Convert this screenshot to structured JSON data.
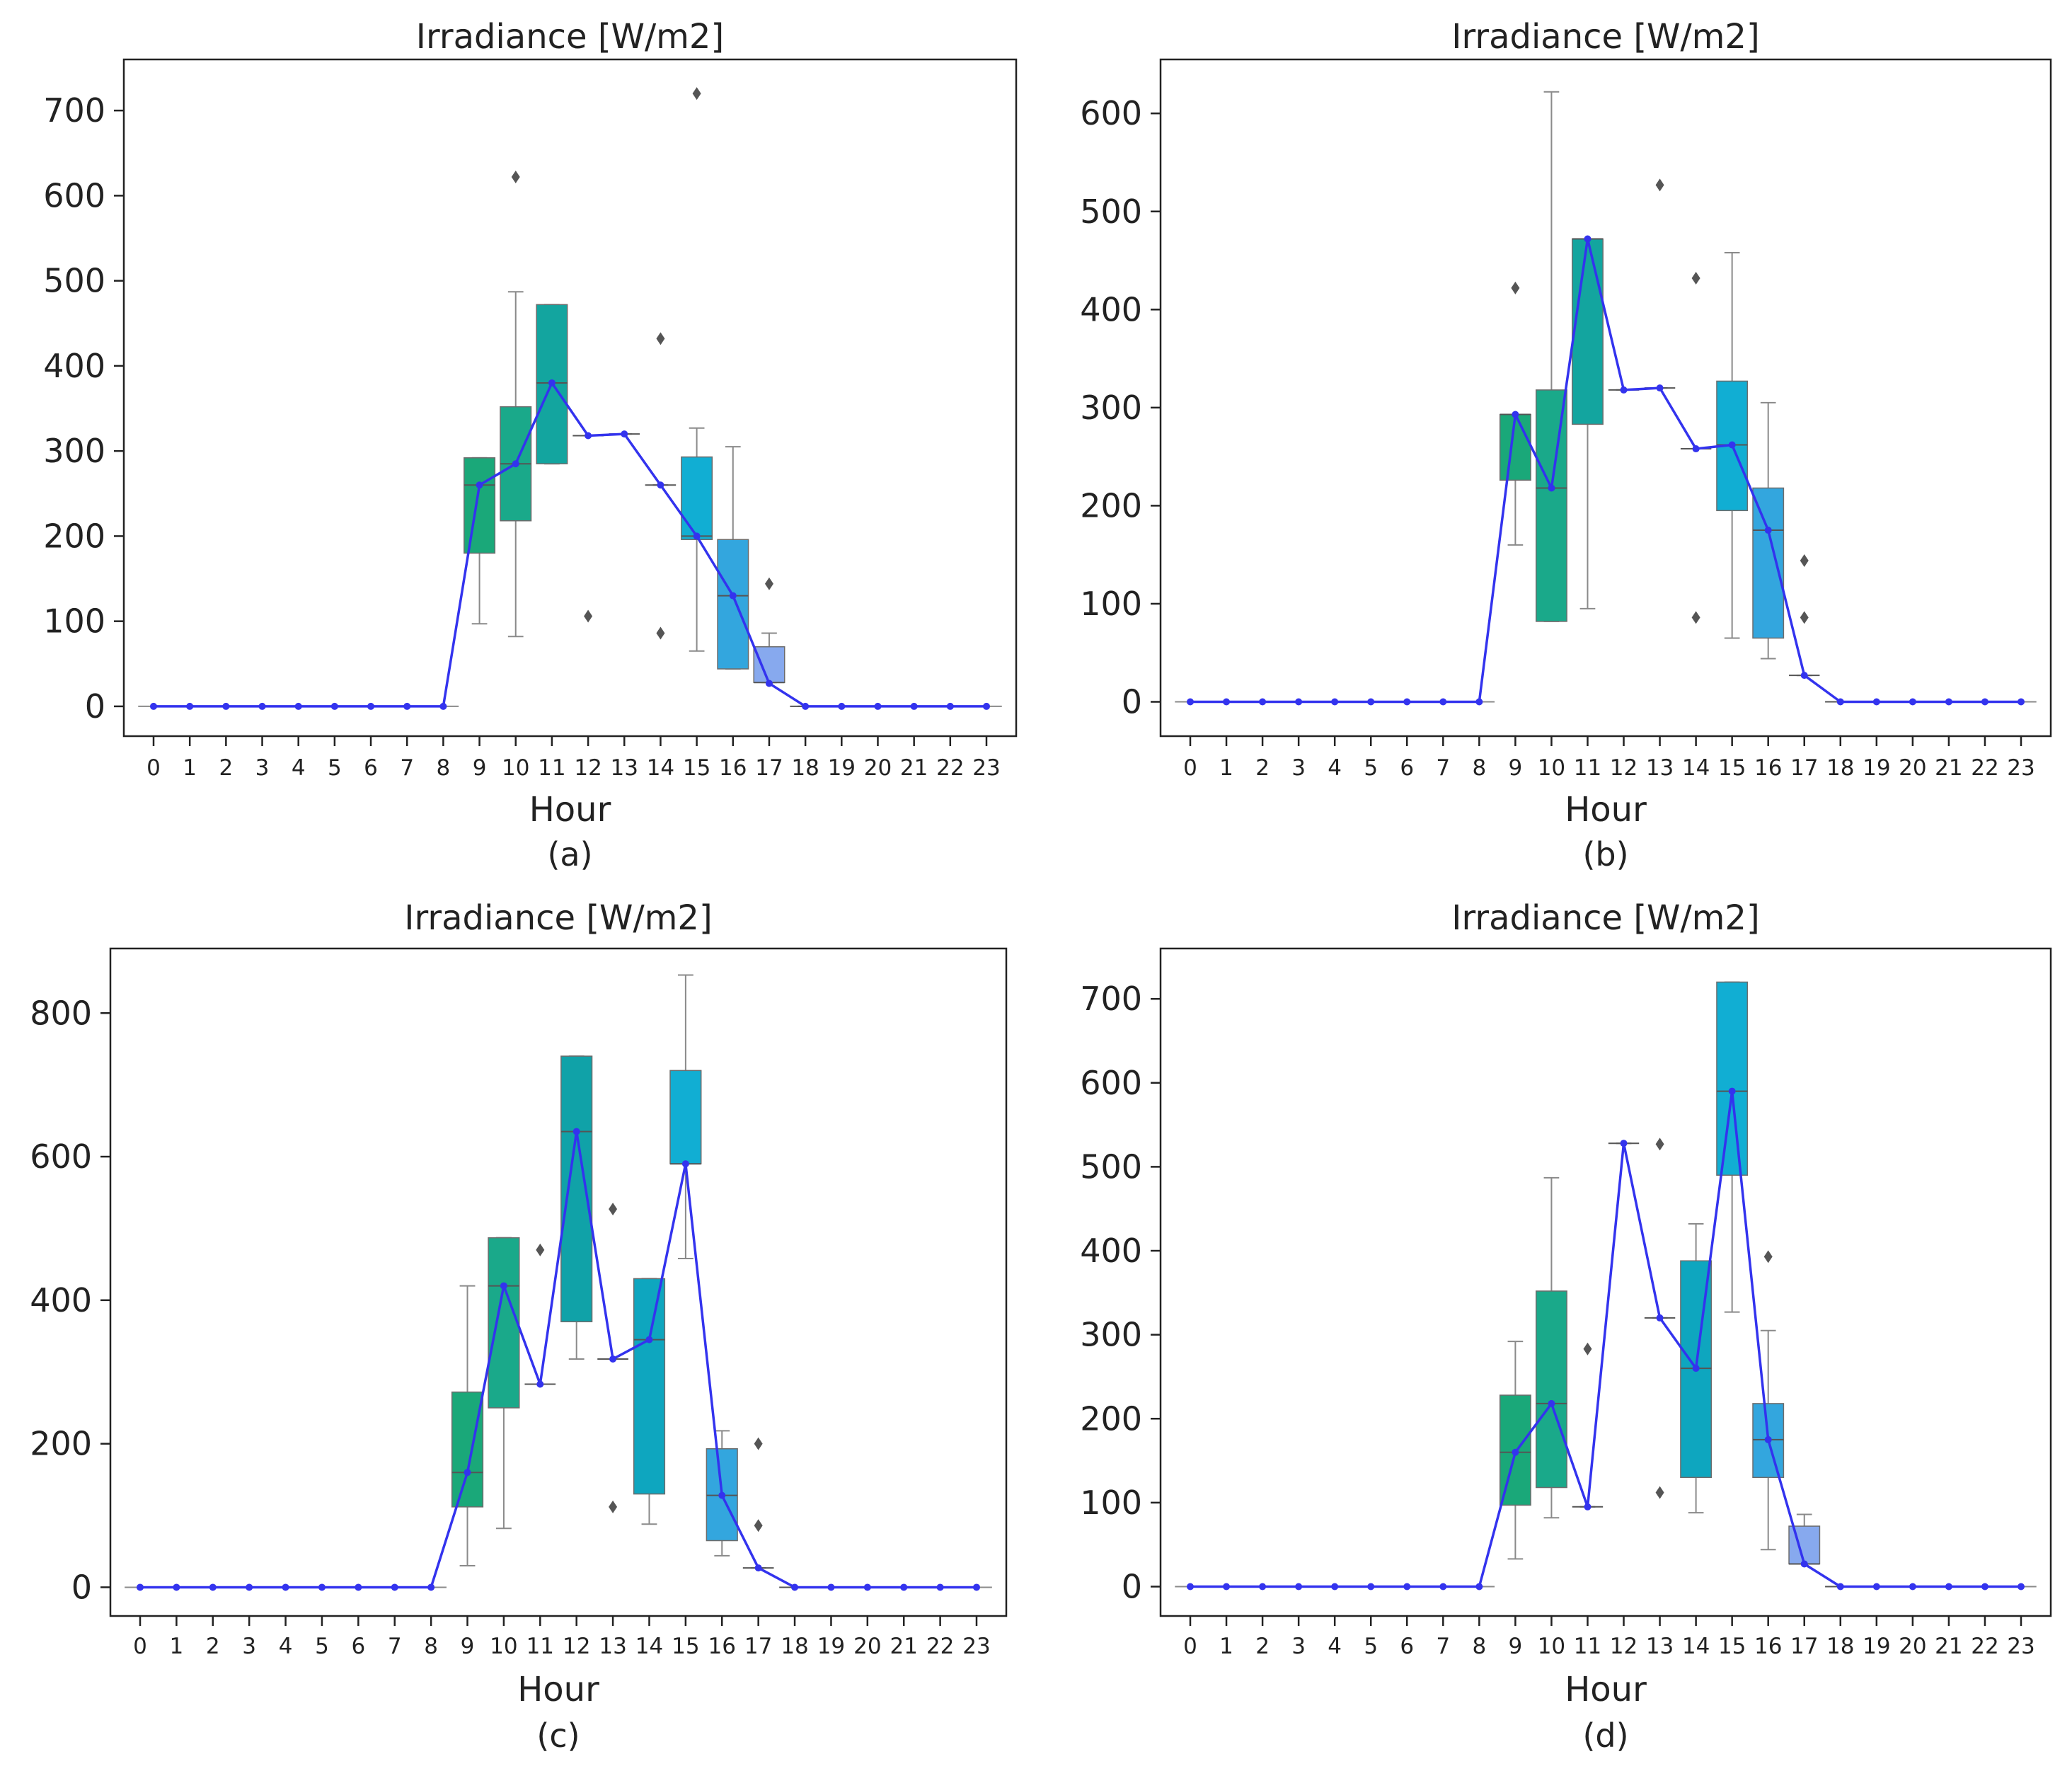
{
  "figure": {
    "panels": [
      {
        "caption": "(a)",
        "chart_data": {
          "type": "box",
          "title": "Irradiance [W/m2]",
          "xlabel": "Hour",
          "ylabel": "",
          "ylim": [
            -35,
            760
          ],
          "yticks": [
            0,
            100,
            200,
            300,
            400,
            500,
            600,
            700
          ],
          "categories": [
            "0",
            "1",
            "2",
            "3",
            "4",
            "5",
            "6",
            "7",
            "8",
            "9",
            "10",
            "11",
            "12",
            "13",
            "14",
            "15",
            "16",
            "17",
            "18",
            "19",
            "20",
            "21",
            "22",
            "23"
          ],
          "mean_line": [
            0,
            0,
            0,
            0,
            0,
            0,
            0,
            0,
            0,
            260,
            285,
            380,
            318,
            320,
            260,
            200,
            130,
            27,
            0,
            0,
            0,
            0,
            0,
            0
          ],
          "boxes": [
            {
              "hour": 9,
              "q1": 180,
              "median": 260,
              "q3": 292,
              "whisker_low": 97,
              "whisker_high": 292,
              "outliers": [],
              "color": "#1aa879"
            },
            {
              "hour": 10,
              "q1": 218,
              "median": 285,
              "q3": 352,
              "whisker_low": 82,
              "whisker_high": 487,
              "outliers": [
                622
              ],
              "color": "#1aa98a"
            },
            {
              "hour": 11,
              "q1": 285,
              "median": 380,
              "q3": 472,
              "whisker_low": 285,
              "whisker_high": 472,
              "outliers": [],
              "color": "#13a59f"
            },
            {
              "hour": 12,
              "q1": 318,
              "median": 318,
              "q3": 318,
              "whisker_low": 318,
              "whisker_high": 318,
              "outliers": [
                106
              ],
              "color": "#10a2a8"
            },
            {
              "hour": 13,
              "q1": 320,
              "median": 320,
              "q3": 320,
              "whisker_low": 320,
              "whisker_high": 320,
              "outliers": [],
              "color": "#0fa3b2"
            },
            {
              "hour": 14,
              "q1": 260,
              "median": 260,
              "q3": 260,
              "whisker_low": 260,
              "whisker_high": 260,
              "outliers": [
                432,
                86
              ],
              "color": "#0ea6bf"
            },
            {
              "hour": 15,
              "q1": 196,
              "median": 200,
              "q3": 293,
              "whisker_low": 65,
              "whisker_high": 327,
              "outliers": [
                720
              ],
              "color": "#11aed3"
            },
            {
              "hour": 16,
              "q1": 44,
              "median": 130,
              "q3": 196,
              "whisker_low": 44,
              "whisker_high": 305,
              "outliers": [],
              "color": "#33a6de"
            },
            {
              "hour": 17,
              "q1": 28,
              "median": 28,
              "q3": 70,
              "whisker_low": 28,
              "whisker_high": 86,
              "outliers": [
                144
              ],
              "color": "#87a9ee"
            },
            {
              "hour": 18,
              "q1": 0,
              "median": 0,
              "q3": 0,
              "whisker_low": 0,
              "whisker_high": 0,
              "outliers": [],
              "color": "#9aa0f0"
            }
          ]
        }
      },
      {
        "caption": "(b)",
        "chart_data": {
          "type": "box",
          "title": "Irradiance [W/m2]",
          "xlabel": "Hour",
          "ylabel": "",
          "ylim": [
            -35,
            655
          ],
          "yticks": [
            0,
            100,
            200,
            300,
            400,
            500,
            600
          ],
          "categories": [
            "0",
            "1",
            "2",
            "3",
            "4",
            "5",
            "6",
            "7",
            "8",
            "9",
            "10",
            "11",
            "12",
            "13",
            "14",
            "15",
            "16",
            "17",
            "18",
            "19",
            "20",
            "21",
            "22",
            "23"
          ],
          "mean_line": [
            0,
            0,
            0,
            0,
            0,
            0,
            0,
            0,
            0,
            293,
            218,
            472,
            318,
            320,
            258,
            262,
            175,
            27,
            0,
            0,
            0,
            0,
            0,
            0
          ],
          "boxes": [
            {
              "hour": 9,
              "q1": 226,
              "median": 293,
              "q3": 293,
              "whisker_low": 160,
              "whisker_high": 293,
              "outliers": [
                422
              ],
              "color": "#1aa879"
            },
            {
              "hour": 10,
              "q1": 82,
              "median": 218,
              "q3": 318,
              "whisker_low": 82,
              "whisker_high": 622,
              "outliers": [],
              "color": "#1aa98a"
            },
            {
              "hour": 11,
              "q1": 283,
              "median": 472,
              "q3": 472,
              "whisker_low": 95,
              "whisker_high": 472,
              "outliers": [],
              "color": "#13a59f"
            },
            {
              "hour": 12,
              "q1": 318,
              "median": 318,
              "q3": 318,
              "whisker_low": 318,
              "whisker_high": 318,
              "outliers": [],
              "color": "#10a2a8"
            },
            {
              "hour": 13,
              "q1": 320,
              "median": 320,
              "q3": 320,
              "whisker_low": 320,
              "whisker_high": 320,
              "outliers": [
                527
              ],
              "color": "#0fa3b2"
            },
            {
              "hour": 14,
              "q1": 258,
              "median": 258,
              "q3": 258,
              "whisker_low": 258,
              "whisker_high": 258,
              "outliers": [
                432,
                86
              ],
              "color": "#0ea6bf"
            },
            {
              "hour": 15,
              "q1": 195,
              "median": 262,
              "q3": 327,
              "whisker_low": 65,
              "whisker_high": 458,
              "outliers": [],
              "color": "#11aed3"
            },
            {
              "hour": 16,
              "q1": 65,
              "median": 175,
              "q3": 218,
              "whisker_low": 44,
              "whisker_high": 305,
              "outliers": [],
              "color": "#33a6de"
            },
            {
              "hour": 17,
              "q1": 27,
              "median": 27,
              "q3": 27,
              "whisker_low": 27,
              "whisker_high": 27,
              "outliers": [
                144,
                86
              ],
              "color": "#87a9ee"
            },
            {
              "hour": 18,
              "q1": 0,
              "median": 0,
              "q3": 0,
              "whisker_low": 0,
              "whisker_high": 0,
              "outliers": [],
              "color": "#9aa0f0"
            }
          ]
        }
      },
      {
        "caption": "(c)",
        "chart_data": {
          "type": "box",
          "title": "Irradiance [W/m2]",
          "xlabel": "Hour",
          "ylabel": "",
          "ylim": [
            -40,
            890
          ],
          "yticks": [
            0,
            200,
            400,
            600,
            800
          ],
          "categories": [
            "0",
            "1",
            "2",
            "3",
            "4",
            "5",
            "6",
            "7",
            "8",
            "9",
            "10",
            "11",
            "12",
            "13",
            "14",
            "15",
            "16",
            "17",
            "18",
            "19",
            "20",
            "21",
            "22",
            "23"
          ],
          "mean_line": [
            0,
            0,
            0,
            0,
            0,
            0,
            0,
            0,
            0,
            160,
            420,
            283,
            635,
            318,
            345,
            590,
            128,
            27,
            0,
            0,
            0,
            0,
            0,
            0
          ],
          "boxes": [
            {
              "hour": 9,
              "q1": 112,
              "median": 160,
              "q3": 272,
              "whisker_low": 30,
              "whisker_high": 420,
              "outliers": [],
              "color": "#1aa879"
            },
            {
              "hour": 10,
              "q1": 250,
              "median": 420,
              "q3": 487,
              "whisker_low": 82,
              "whisker_high": 487,
              "outliers": [],
              "color": "#1aa98a"
            },
            {
              "hour": 11,
              "q1": 283,
              "median": 283,
              "q3": 283,
              "whisker_low": 283,
              "whisker_high": 283,
              "outliers": [
                470
              ],
              "color": "#13a59f"
            },
            {
              "hour": 12,
              "q1": 370,
              "median": 635,
              "q3": 740,
              "whisker_low": 318,
              "whisker_high": 740,
              "outliers": [],
              "color": "#10a2a8"
            },
            {
              "hour": 13,
              "q1": 318,
              "median": 318,
              "q3": 318,
              "whisker_low": 318,
              "whisker_high": 318,
              "outliers": [
                527,
                112
              ],
              "color": "#0fa3b2"
            },
            {
              "hour": 14,
              "q1": 130,
              "median": 345,
              "q3": 430,
              "whisker_low": 88,
              "whisker_high": 430,
              "outliers": [],
              "color": "#0ea6bf"
            },
            {
              "hour": 15,
              "q1": 590,
              "median": 590,
              "q3": 720,
              "whisker_low": 458,
              "whisker_high": 853,
              "outliers": [],
              "color": "#11aed3"
            },
            {
              "hour": 16,
              "q1": 65,
              "median": 128,
              "q3": 193,
              "whisker_low": 44,
              "whisker_high": 218,
              "outliers": [],
              "color": "#33a6de"
            },
            {
              "hour": 17,
              "q1": 27,
              "median": 27,
              "q3": 27,
              "whisker_low": 27,
              "whisker_high": 27,
              "outliers": [
                200,
                86
              ],
              "color": "#87a9ee"
            },
            {
              "hour": 18,
              "q1": 0,
              "median": 0,
              "q3": 0,
              "whisker_low": 0,
              "whisker_high": 0,
              "outliers": [],
              "color": "#9aa0f0"
            }
          ]
        }
      },
      {
        "caption": "(d)",
        "chart_data": {
          "type": "box",
          "title": "Irradiance [W/m2]",
          "xlabel": "Hour",
          "ylabel": "",
          "ylim": [
            -35,
            760
          ],
          "yticks": [
            0,
            100,
            200,
            300,
            400,
            500,
            600,
            700
          ],
          "categories": [
            "0",
            "1",
            "2",
            "3",
            "4",
            "5",
            "6",
            "7",
            "8",
            "9",
            "10",
            "11",
            "12",
            "13",
            "14",
            "15",
            "16",
            "17",
            "18",
            "19",
            "20",
            "21",
            "22",
            "23"
          ],
          "mean_line": [
            0,
            0,
            0,
            0,
            0,
            0,
            0,
            0,
            0,
            160,
            218,
            95,
            528,
            320,
            260,
            590,
            175,
            27,
            0,
            0,
            0,
            0,
            0,
            0
          ],
          "boxes": [
            {
              "hour": 9,
              "q1": 97,
              "median": 160,
              "q3": 228,
              "whisker_low": 33,
              "whisker_high": 292,
              "outliers": [],
              "color": "#1aa879"
            },
            {
              "hour": 10,
              "q1": 118,
              "median": 218,
              "q3": 352,
              "whisker_low": 82,
              "whisker_high": 487,
              "outliers": [],
              "color": "#1aa98a"
            },
            {
              "hour": 11,
              "q1": 95,
              "median": 95,
              "q3": 95,
              "whisker_low": 95,
              "whisker_high": 95,
              "outliers": [
                283
              ],
              "color": "#13a59f"
            },
            {
              "hour": 12,
              "q1": 528,
              "median": 528,
              "q3": 528,
              "whisker_low": 528,
              "whisker_high": 528,
              "outliers": [],
              "color": "#10a2a8"
            },
            {
              "hour": 13,
              "q1": 320,
              "median": 320,
              "q3": 320,
              "whisker_low": 320,
              "whisker_high": 320,
              "outliers": [
                527,
                112
              ],
              "color": "#0fa3b2"
            },
            {
              "hour": 14,
              "q1": 130,
              "median": 260,
              "q3": 388,
              "whisker_low": 88,
              "whisker_high": 432,
              "outliers": [],
              "color": "#0ea6bf"
            },
            {
              "hour": 15,
              "q1": 490,
              "median": 590,
              "q3": 720,
              "whisker_low": 327,
              "whisker_high": 720,
              "outliers": [],
              "color": "#11aed3"
            },
            {
              "hour": 16,
              "q1": 130,
              "median": 175,
              "q3": 218,
              "whisker_low": 44,
              "whisker_high": 305,
              "outliers": [
                393
              ],
              "color": "#33a6de"
            },
            {
              "hour": 17,
              "q1": 27,
              "median": 27,
              "q3": 72,
              "whisker_low": 27,
              "whisker_high": 86,
              "outliers": [],
              "color": "#87a9ee"
            },
            {
              "hour": 18,
              "q1": 0,
              "median": 0,
              "q3": 0,
              "whisker_low": 0,
              "whisker_high": 0,
              "outliers": [],
              "color": "#9aa0f0"
            }
          ]
        }
      }
    ],
    "colors": {
      "mean_line": "#3333ee",
      "axes": "#222222",
      "whisker": "#8a8a8a",
      "outlier": "#555555",
      "background": "#ffffff"
    }
  }
}
